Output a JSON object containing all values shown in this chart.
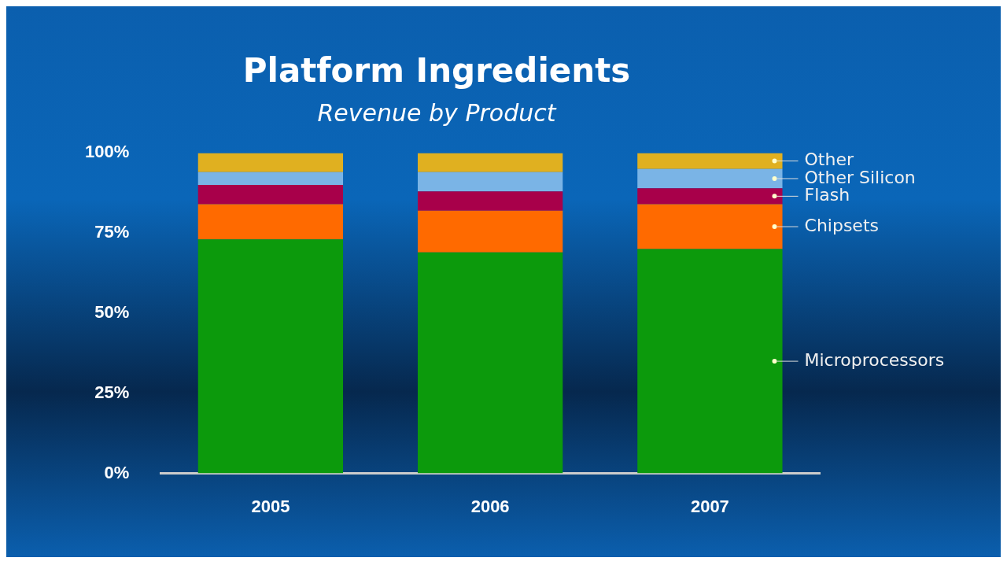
{
  "chart_data": {
    "type": "bar",
    "title": "Platform Ingredients",
    "subtitle": "Revenue by Product",
    "categories": [
      "2005",
      "2006",
      "2007"
    ],
    "stacked": true,
    "series": [
      {
        "name": "Microprocessors",
        "color": "#0c9a0c",
        "values": [
          73,
          69,
          70
        ]
      },
      {
        "name": "Chipsets",
        "color": "#ff6a00",
        "values": [
          11,
          13,
          14
        ]
      },
      {
        "name": "Flash",
        "color": "#a8004a",
        "values": [
          6,
          6,
          5
        ]
      },
      {
        "name": "Other Silicon",
        "color": "#7ab4e6",
        "values": [
          4,
          6,
          6
        ]
      },
      {
        "name": "Other",
        "color": "#e0b020",
        "values": [
          6,
          6,
          5
        ]
      }
    ],
    "ylim": [
      0,
      100
    ],
    "yticks": [
      {
        "value": 0,
        "label": "0%"
      },
      {
        "value": 25,
        "label": "25%"
      },
      {
        "value": 50,
        "label": "50%"
      },
      {
        "value": 75,
        "label": "75%"
      },
      {
        "value": 100,
        "label": "100%"
      }
    ],
    "grid": false,
    "legend": false
  }
}
